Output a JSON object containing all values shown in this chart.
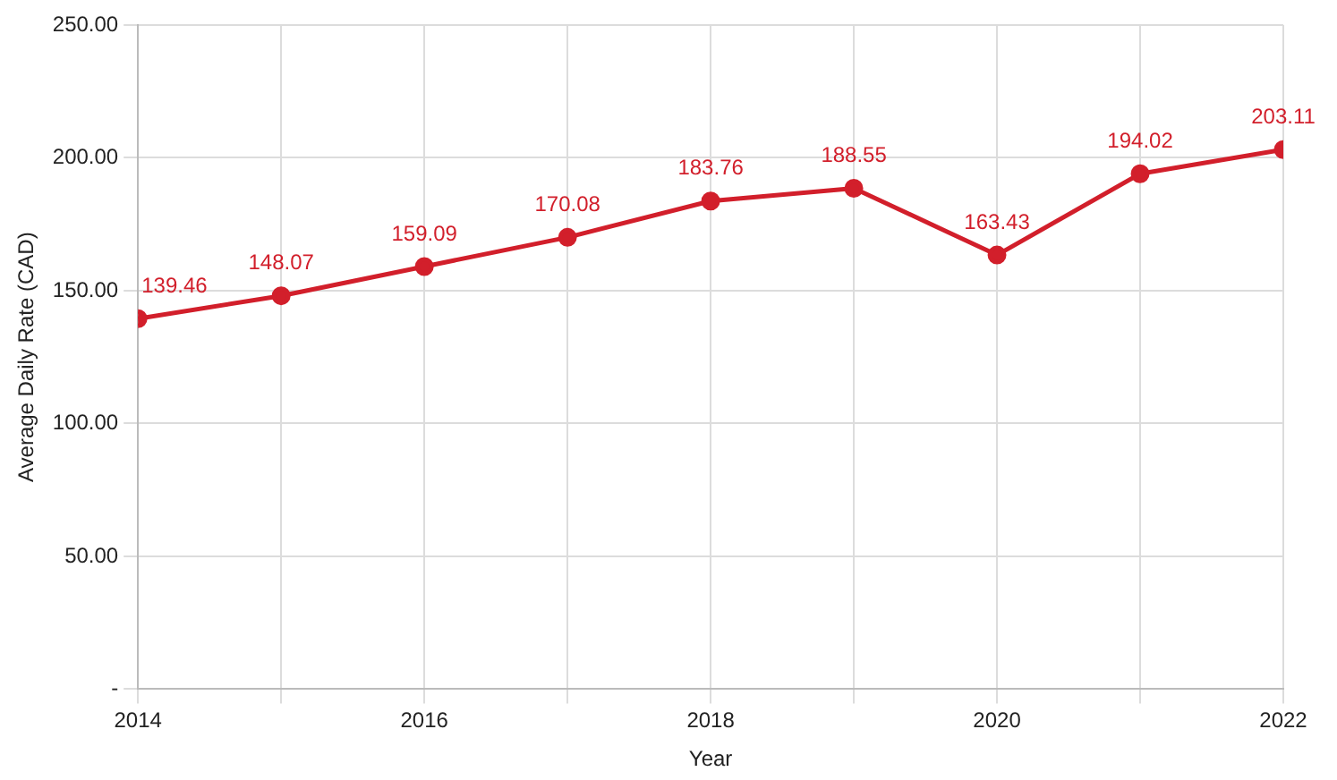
{
  "chart_data": {
    "type": "line",
    "xlabel": "Year",
    "ylabel": "Average Daily Rate (CAD)",
    "x": [
      2014,
      2015,
      2016,
      2017,
      2018,
      2019,
      2020,
      2021,
      2022
    ],
    "series": [
      {
        "color": "#d21f2b",
        "values": [
          139.46,
          148.07,
          159.09,
          170.08,
          183.76,
          188.55,
          163.43,
          194.02,
          203.11
        ]
      }
    ],
    "xlim": [
      2014,
      2022
    ],
    "xticks": [
      2014,
      {
        "value": 2015,
        "label": null
      },
      2016,
      {
        "value": 2017,
        "label": null
      },
      2018,
      {
        "value": 2019,
        "label": null
      },
      2020,
      {
        "value": 2021,
        "label": null
      },
      2022
    ],
    "ylim": [
      0,
      250
    ],
    "yticks": [
      {
        "value": 0,
        "label": "-"
      },
      {
        "value": 50,
        "label": "50.00"
      },
      {
        "value": 100,
        "label": "100.00"
      },
      {
        "value": 150,
        "label": "150.00"
      },
      {
        "value": 200,
        "label": "200.00"
      },
      {
        "value": 250,
        "label": "250.00"
      }
    ],
    "grid": true,
    "marker": "circle",
    "line_style": "solid",
    "data_labels": true,
    "legend": false
  }
}
